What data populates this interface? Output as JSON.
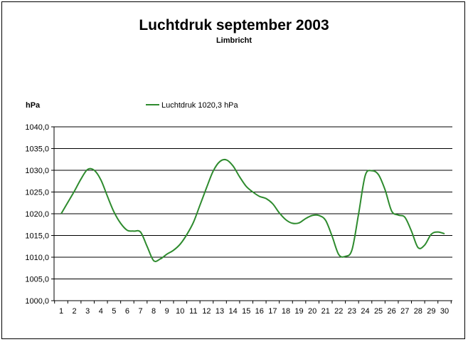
{
  "chart_data": {
    "type": "line",
    "title": "Luchtdruk september 2003",
    "subtitle": "Limbricht",
    "ylabel": "hPa",
    "xlabel": "",
    "legend_position": "top",
    "grid": "horizontal",
    "ylim": [
      1000,
      1040
    ],
    "xlim": [
      1,
      30
    ],
    "y_ticks": [
      "1000,0",
      "1005,0",
      "1010,0",
      "1015,0",
      "1020,0",
      "1025,0",
      "1030,0",
      "1035,0",
      "1040,0"
    ],
    "x_ticks": [
      "1",
      "2",
      "3",
      "4",
      "5",
      "6",
      "7",
      "8",
      "9",
      "10",
      "11",
      "12",
      "13",
      "14",
      "15",
      "16",
      "17",
      "18",
      "19",
      "20",
      "21",
      "22",
      "23",
      "24",
      "25",
      "26",
      "27",
      "28",
      "29",
      "30"
    ],
    "series": [
      {
        "name": "Luchtdruk 1020,3 hPa",
        "color": "#2e8b2e",
        "points": [
          [
            1,
            1020.0
          ],
          [
            1.5,
            1022.6
          ],
          [
            2,
            1025.2
          ],
          [
            2.5,
            1028.0
          ],
          [
            3,
            1030.2
          ],
          [
            3.5,
            1030.0
          ],
          [
            4,
            1027.8
          ],
          [
            4.5,
            1024.0
          ],
          [
            5,
            1020.4
          ],
          [
            5.5,
            1017.8
          ],
          [
            6,
            1016.2
          ],
          [
            6.5,
            1016.0
          ],
          [
            7,
            1015.8
          ],
          [
            7.5,
            1012.5
          ],
          [
            8,
            1009.2
          ],
          [
            8.5,
            1009.6
          ],
          [
            9,
            1010.7
          ],
          [
            9.5,
            1011.6
          ],
          [
            10,
            1013.0
          ],
          [
            10.5,
            1015.2
          ],
          [
            11,
            1018.0
          ],
          [
            11.5,
            1022.0
          ],
          [
            12,
            1026.0
          ],
          [
            12.5,
            1029.8
          ],
          [
            13,
            1032.0
          ],
          [
            13.5,
            1032.4
          ],
          [
            14,
            1031.0
          ],
          [
            14.5,
            1028.5
          ],
          [
            15,
            1026.3
          ],
          [
            15.5,
            1025.0
          ],
          [
            16,
            1024.0
          ],
          [
            16.5,
            1023.5
          ],
          [
            17,
            1022.3
          ],
          [
            17.5,
            1020.2
          ],
          [
            18,
            1018.6
          ],
          [
            18.5,
            1017.8
          ],
          [
            19,
            1017.9
          ],
          [
            19.5,
            1018.9
          ],
          [
            20,
            1019.6
          ],
          [
            20.5,
            1019.6
          ],
          [
            21,
            1018.5
          ],
          [
            21.5,
            1014.8
          ],
          [
            22,
            1010.6
          ],
          [
            22.5,
            1010.2
          ],
          [
            23,
            1011.7
          ],
          [
            23.5,
            1020.0
          ],
          [
            24,
            1028.8
          ],
          [
            24.5,
            1029.9
          ],
          [
            25,
            1029.0
          ],
          [
            25.5,
            1025.5
          ],
          [
            26,
            1020.6
          ],
          [
            26.5,
            1019.7
          ],
          [
            27,
            1019.2
          ],
          [
            27.5,
            1016.0
          ],
          [
            28,
            1012.2
          ],
          [
            28.5,
            1012.8
          ],
          [
            29,
            1015.3
          ],
          [
            29.5,
            1015.8
          ],
          [
            30,
            1015.4
          ]
        ]
      }
    ]
  }
}
